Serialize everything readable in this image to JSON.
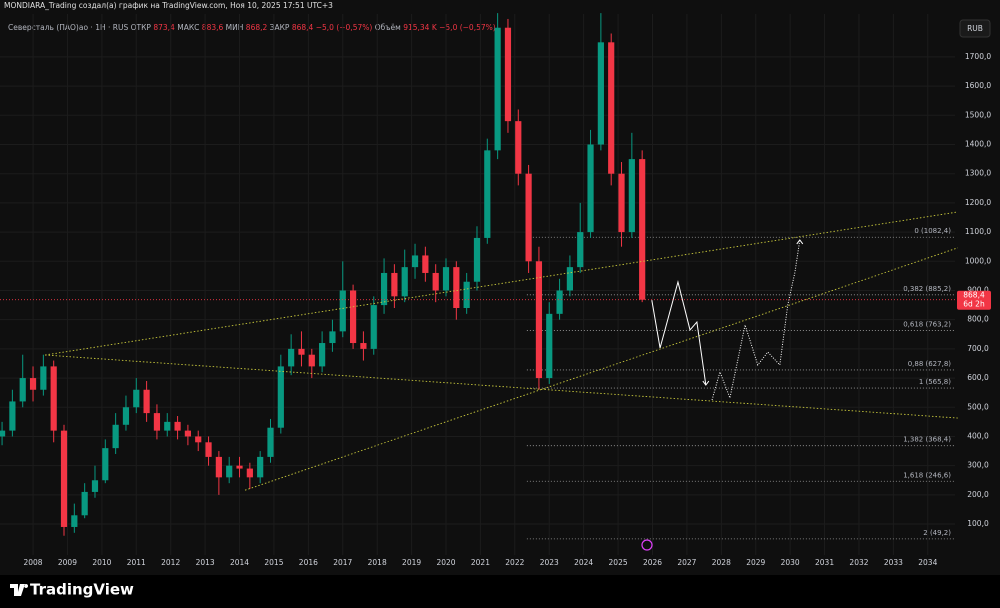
{
  "header": "MONDIARA_Trading создал(а) график на TradingView.com, Ноя 10, 2025 17:51 UTC+3",
  "legend": {
    "symbol": "Северсталь (ПАО)ао · 1Н · RUS",
    "items": [
      {
        "label": "ОТКР",
        "value": "873,4"
      },
      {
        "label": "МАКС",
        "value": "883,6"
      },
      {
        "label": "МИН",
        "value": "868,2"
      },
      {
        "label": "ЗАКР",
        "value": "868,4"
      },
      {
        "value": "−5,0 (−0,57%)"
      },
      {
        "label": "Объём",
        "value": "915,34 K"
      },
      {
        "value": "−5,0 (−0,57%)"
      }
    ]
  },
  "currency": "RUB",
  "brand": "TradingView",
  "chart_data": {
    "type": "candlestick",
    "up_color": "#089981",
    "down_color": "#f23645",
    "grid": true,
    "xlim": [
      2007.04,
      2034.79
    ],
    "ylim": [
      -6,
      1847
    ],
    "xticks": [
      2008,
      2009,
      2010,
      2011,
      2012,
      2013,
      2014,
      2015,
      2016,
      2017,
      2018,
      2019,
      2020,
      2021,
      2022,
      2023,
      2024,
      2025,
      2026,
      2027,
      2028,
      2029,
      2030,
      2031,
      2032,
      2033,
      2034
    ],
    "yticks": [
      {
        "value": 100,
        "label": "100,0"
      },
      {
        "value": 200,
        "label": "200,0"
      },
      {
        "value": 300,
        "label": "300,0"
      },
      {
        "value": 400,
        "label": "400,0"
      },
      {
        "value": 500,
        "label": "500,0"
      },
      {
        "value": 600,
        "label": "600,0"
      },
      {
        "value": 700,
        "label": "700,0"
      },
      {
        "value": 800,
        "label": "800,0"
      },
      {
        "value": 900,
        "label": "900,0"
      },
      {
        "value": 1000,
        "label": "1000,0"
      },
      {
        "value": 1100,
        "label": "1100,0"
      },
      {
        "value": 1200,
        "label": "1200,0"
      },
      {
        "value": 1300,
        "label": "1300,0"
      },
      {
        "value": 1400,
        "label": "1400,0"
      },
      {
        "value": 1500,
        "label": "1500,0"
      },
      {
        "value": 1600,
        "label": "1600,0"
      },
      {
        "value": 1700,
        "label": "1700,0"
      }
    ],
    "x": [
      2007.1,
      2007.4,
      2007.7,
      2008.0,
      2008.3,
      2008.6,
      2008.9,
      2009.2,
      2009.5,
      2009.8,
      2010.1,
      2010.4,
      2010.7,
      2011.0,
      2011.3,
      2011.6,
      2011.9,
      2012.2,
      2012.5,
      2012.8,
      2013.1,
      2013.4,
      2013.7,
      2014.0,
      2014.3,
      2014.6,
      2014.9,
      2015.2,
      2015.5,
      2015.8,
      2016.1,
      2016.4,
      2016.7,
      2017.0,
      2017.3,
      2017.6,
      2017.9,
      2018.2,
      2018.5,
      2018.8,
      2019.1,
      2019.4,
      2019.7,
      2020.0,
      2020.3,
      2020.6,
      2020.9,
      2021.2,
      2021.5,
      2021.8,
      2022.1,
      2022.4,
      2022.7,
      2023.0,
      2023.3,
      2023.6,
      2023.9,
      2024.2,
      2024.5,
      2024.8,
      2025.1,
      2025.4,
      2025.7
    ],
    "open": [
      400,
      420,
      520,
      600,
      560,
      640,
      420,
      90,
      130,
      210,
      250,
      360,
      440,
      500,
      560,
      480,
      420,
      450,
      420,
      400,
      380,
      330,
      260,
      300,
      290,
      260,
      330,
      430,
      640,
      700,
      680,
      640,
      720,
      760,
      900,
      720,
      700,
      850,
      960,
      880,
      980,
      1020,
      960,
      900,
      980,
      840,
      930,
      1080,
      1380,
      1800,
      1480,
      1300,
      1000,
      600,
      820,
      900,
      980,
      1100,
      1400,
      1750,
      1300,
      1100,
      1350
    ],
    "high": [
      450,
      560,
      680,
      640,
      680,
      660,
      440,
      170,
      240,
      300,
      390,
      480,
      540,
      600,
      590,
      510,
      480,
      470,
      440,
      420,
      400,
      350,
      330,
      330,
      310,
      350,
      460,
      680,
      750,
      760,
      700,
      760,
      800,
      1000,
      920,
      760,
      880,
      1010,
      990,
      1040,
      1060,
      1050,
      990,
      1010,
      1000,
      960,
      1120,
      1420,
      1850,
      1830,
      1520,
      1330,
      1050,
      860,
      940,
      1020,
      1200,
      1450,
      1850,
      1780,
      1340,
      1440,
      1380
    ],
    "low": [
      370,
      400,
      500,
      520,
      540,
      380,
      60,
      70,
      120,
      190,
      240,
      340,
      420,
      480,
      450,
      390,
      400,
      390,
      370,
      350,
      300,
      200,
      240,
      260,
      220,
      240,
      310,
      410,
      610,
      640,
      600,
      620,
      690,
      740,
      700,
      660,
      680,
      820,
      840,
      860,
      940,
      930,
      860,
      880,
      800,
      820,
      900,
      1060,
      1350,
      1440,
      1260,
      960,
      560,
      580,
      800,
      880,
      960,
      1080,
      1380,
      1260,
      1050,
      1080,
      860
    ],
    "close": [
      420,
      520,
      600,
      560,
      640,
      420,
      90,
      130,
      210,
      250,
      360,
      440,
      500,
      560,
      480,
      420,
      450,
      420,
      400,
      380,
      330,
      260,
      300,
      290,
      260,
      330,
      430,
      640,
      700,
      680,
      640,
      720,
      760,
      900,
      720,
      700,
      850,
      960,
      880,
      980,
      1020,
      960,
      900,
      980,
      840,
      930,
      1080,
      1380,
      1800,
      1480,
      1300,
      1000,
      600,
      820,
      900,
      980,
      1100,
      1400,
      1750,
      1300,
      1100,
      1350,
      868.4
    ],
    "last_price": {
      "value": 868.4,
      "label": "868,4"
    },
    "countdown": "6d 2h",
    "fib_start": 2022.35,
    "fib_levels": [
      {
        "value": 1082.4,
        "label": "0 (1082,4)"
      },
      {
        "value": 885.2,
        "label": "0,382 (885,2)"
      },
      {
        "value": 763.2,
        "label": "0,618 (763,2)"
      },
      {
        "value": 627.8,
        "label": "0,88 (627,8)"
      },
      {
        "value": 565.8,
        "label": "1 (565,8)"
      },
      {
        "value": 368.4,
        "label": "1,382 (368,4)"
      },
      {
        "value": 246.6,
        "label": "1,618 (246,6)"
      },
      {
        "value": 49.2,
        "label": "2 (49,2)"
      }
    ],
    "trend_lines": [
      {
        "x": [
          2008.35,
          2034.87
        ],
        "y": [
          679,
          463
        ]
      },
      {
        "x": [
          2008.35,
          2034.87
        ],
        "y": [
          679,
          1169
        ]
      },
      {
        "x": [
          2014.16,
          2034.87
        ],
        "y": [
          216,
          1046
        ]
      }
    ],
    "forecast": [
      {
        "style": "solid",
        "x": [
          2025.98,
          2026.22,
          2026.74,
          2027.09,
          2027.29,
          2027.55
        ],
        "y": [
          867,
          703,
          929,
          765,
          792,
          576
        ]
      },
      {
        "style": "dotted",
        "x": [
          2027.73,
          2027.96,
          2028.25,
          2028.69,
          2029.06,
          2029.35,
          2029.7,
          2029.93,
          2030.14,
          2030.28
        ],
        "y": [
          525,
          621,
          532,
          782,
          645,
          689,
          645,
          850,
          963,
          1073
        ]
      }
    ]
  }
}
